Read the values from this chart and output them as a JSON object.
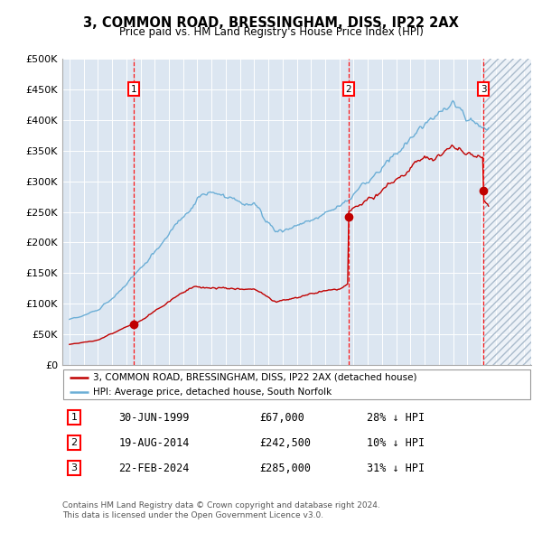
{
  "title": "3, COMMON ROAD, BRESSINGHAM, DISS, IP22 2AX",
  "subtitle": "Price paid vs. HM Land Registry's House Price Index (HPI)",
  "legend_line1": "3, COMMON ROAD, BRESSINGHAM, DISS, IP22 2AX (detached house)",
  "legend_line2": "HPI: Average price, detached house, South Norfolk",
  "transactions": [
    {
      "num": 1,
      "date": "30-JUN-1999",
      "price": 67000,
      "pct": "28%",
      "dir": "↓",
      "x_year": 1999.5
    },
    {
      "num": 2,
      "date": "19-AUG-2014",
      "price": 242500,
      "pct": "10%",
      "dir": "↓",
      "x_year": 2014.63
    },
    {
      "num": 3,
      "date": "22-FEB-2024",
      "price": 285000,
      "pct": "31%",
      "dir": "↓",
      "x_year": 2024.14
    }
  ],
  "ylabel_ticks": [
    "£0",
    "£50K",
    "£100K",
    "£150K",
    "£200K",
    "£250K",
    "£300K",
    "£350K",
    "£400K",
    "£450K",
    "£500K"
  ],
  "ytick_values": [
    0,
    50000,
    100000,
    150000,
    200000,
    250000,
    300000,
    350000,
    400000,
    450000,
    500000
  ],
  "xmin": 1994.5,
  "xmax": 2027.5,
  "ymin": 0,
  "ymax": 500000,
  "hpi_color": "#6baed6",
  "price_color": "#c00000",
  "background_color": "#dce6f1",
  "grid_color": "#ffffff",
  "footnote": "Contains HM Land Registry data © Crown copyright and database right 2024.\nThis data is licensed under the Open Government Licence v3.0.",
  "future_start": 2024.14
}
